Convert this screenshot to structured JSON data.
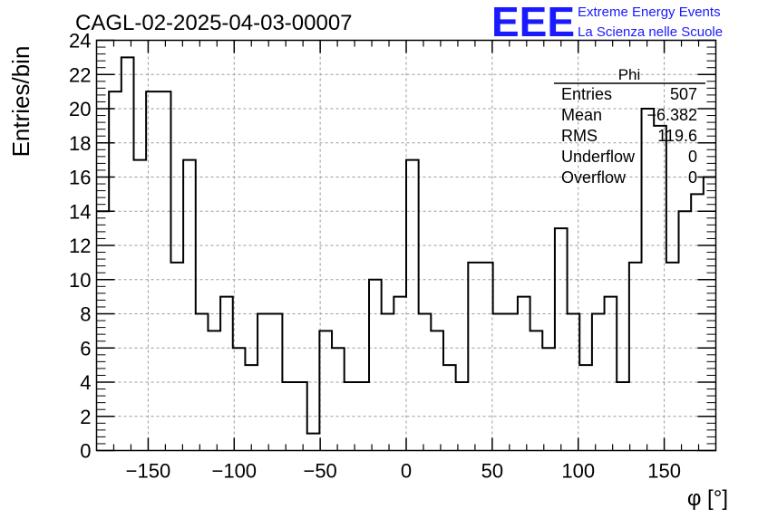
{
  "chart_data": {
    "type": "histogram",
    "title": "CAGL-02-2025-04-03-00007",
    "xlabel": "φ [°]",
    "ylabel": "Entries/bin",
    "xlim": [
      -180,
      180
    ],
    "ylim": [
      0,
      24
    ],
    "grid": true,
    "bin_width": 7.2,
    "xticks": [
      -150,
      -100,
      -50,
      0,
      50,
      100,
      150
    ],
    "xtick_labels": [
      "−150",
      "−100",
      "−50",
      "0",
      "50",
      "100",
      "150"
    ],
    "yticks": [
      0,
      2,
      4,
      6,
      8,
      10,
      12,
      14,
      16,
      18,
      20,
      22,
      24
    ],
    "values": [
      14,
      21,
      23,
      17,
      21,
      21,
      11,
      17,
      8,
      7,
      9,
      6,
      5,
      8,
      8,
      4,
      4,
      1,
      7,
      6,
      4,
      4,
      10,
      8,
      9,
      17,
      8,
      7,
      5,
      4,
      11,
      11,
      8,
      8,
      9,
      7,
      6,
      13,
      8,
      5,
      8,
      9,
      4,
      11,
      20,
      19,
      11,
      14,
      15,
      16
    ],
    "stats": {
      "name": "Phi",
      "rows": [
        {
          "label": "Entries",
          "value": "507"
        },
        {
          "label": "Mean",
          "value": "−6.382"
        },
        {
          "label": "RMS",
          "value": "119.6"
        },
        {
          "label": "Underflow",
          "value": "0"
        },
        {
          "label": "Overflow",
          "value": "0"
        }
      ]
    }
  },
  "logo": {
    "letters": "EEE",
    "line1": "Extreme Energy Events",
    "line2": "La Scienza nelle Scuole",
    "color": "#1a1aff"
  }
}
